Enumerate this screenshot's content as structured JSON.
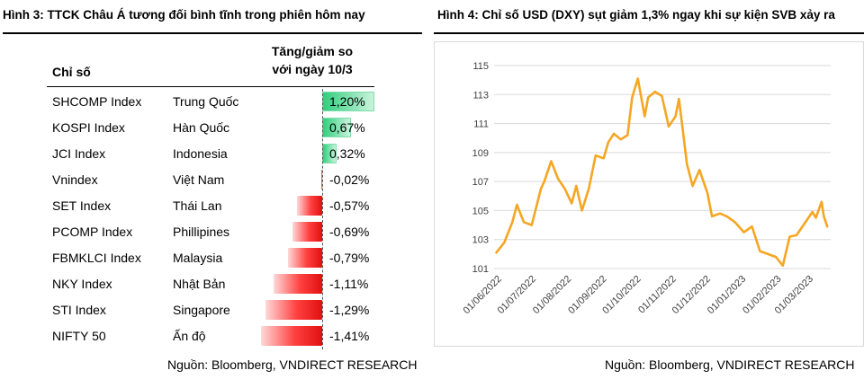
{
  "left_panel": {
    "title": "Hình 3: TTCK Châu Á tương đối bình tĩnh trong phiên hôm nay",
    "header_index": "Chỉ số",
    "header_change_line1": "Tăng/giảm so",
    "header_change_line2": "với ngày 10/3",
    "source": "Nguồn: Bloomberg, VNDIRECT RESEARCH"
  },
  "right_panel": {
    "title": "Hình 4: Chỉ số USD (DXY) sụt giảm 1,3% ngay khi sự kiện SVB xảy ra",
    "source": "Nguồn: Bloomberg, VNDIRECT RESEARCH"
  },
  "colors": {
    "positive": "#2fcf7c",
    "negative": "#e01010",
    "line": "#f5a623"
  },
  "chart_data": [
    {
      "type": "bar",
      "orientation": "horizontal",
      "categories": [
        "SHCOMP Index",
        "KOSPI Index",
        "JCI Index",
        "Vnindex",
        "SET Index",
        "PCOMP Index",
        "FBMKLCI Index",
        "NKY Index",
        "STI Index",
        "NIFTY 50"
      ],
      "countries": [
        "Trung Quốc",
        "Hàn Quốc",
        "Indonesia",
        "Việt Nam",
        "Thái Lan",
        "Phillipines",
        "Malaysia",
        "Nhật Bản",
        "Singapore",
        "Ấn độ"
      ],
      "values": [
        1.2,
        0.67,
        0.32,
        -0.02,
        -0.57,
        -0.69,
        -0.79,
        -1.11,
        -1.29,
        -1.41
      ],
      "value_labels": [
        "1,20%",
        "0,67%",
        "0,32%",
        "-0,02%",
        "-0,57%",
        "-0,69%",
        "-0,79%",
        "-1,11%",
        "-1,29%",
        "-1,41%"
      ],
      "unit": "%"
    },
    {
      "type": "line",
      "ylim": [
        101,
        115
      ],
      "yticks": [
        101,
        103,
        105,
        107,
        109,
        111,
        113,
        115
      ],
      "xticks": [
        "01/06/2022",
        "01/07/2022",
        "01/08/2022",
        "01/09/2022",
        "01/10/2022",
        "01/11/2022",
        "01/12/2022",
        "01/01/2023",
        "01/02/2023",
        "01/03/2023"
      ],
      "grid": "horizontal",
      "series": [
        {
          "x": [
            "2022-05-27",
            "2022-06-03",
            "2022-06-10",
            "2022-06-14",
            "2022-06-20",
            "2022-06-27",
            "2022-07-05",
            "2022-07-08",
            "2022-07-14",
            "2022-07-20",
            "2022-07-26",
            "2022-08-01",
            "2022-08-05",
            "2022-08-10",
            "2022-08-16",
            "2022-08-22",
            "2022-08-29",
            "2022-09-02",
            "2022-09-07",
            "2022-09-13",
            "2022-09-19",
            "2022-09-23",
            "2022-09-28",
            "2022-10-04",
            "2022-10-07",
            "2022-10-13",
            "2022-10-19",
            "2022-10-25",
            "2022-10-31",
            "2022-11-03",
            "2022-11-10",
            "2022-11-15",
            "2022-11-21",
            "2022-11-28",
            "2022-12-02",
            "2022-12-09",
            "2022-12-15",
            "2022-12-22",
            "2022-12-30",
            "2023-01-06",
            "2023-01-13",
            "2023-01-20",
            "2023-01-27",
            "2023-02-02",
            "2023-02-08",
            "2023-02-14",
            "2023-02-21",
            "2023-02-28",
            "2023-03-03",
            "2023-03-08",
            "2023-03-10",
            "2023-03-13"
          ],
          "values": [
            102.1,
            102.8,
            104.2,
            105.4,
            104.2,
            104.0,
            106.5,
            107.0,
            108.4,
            107.2,
            106.5,
            105.5,
            106.7,
            105.0,
            106.5,
            108.8,
            108.6,
            109.7,
            110.3,
            109.9,
            110.2,
            112.8,
            114.1,
            111.5,
            112.8,
            113.2,
            112.9,
            110.8,
            111.5,
            112.7,
            108.2,
            106.7,
            107.8,
            106.2,
            104.6,
            104.8,
            104.6,
            104.2,
            103.5,
            103.9,
            102.2,
            102.0,
            101.8,
            101.2,
            103.2,
            103.3,
            104.1,
            104.9,
            104.5,
            105.6,
            104.6,
            103.9
          ]
        }
      ]
    }
  ]
}
